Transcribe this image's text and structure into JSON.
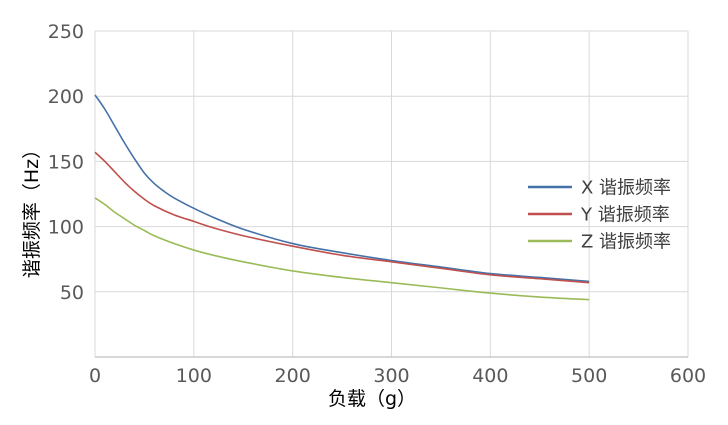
{
  "chart_data": {
    "type": "line",
    "xlabel": "负载（g）",
    "ylabel": "谐振频率（Hz）",
    "xlim": [
      0,
      600
    ],
    "ylim": [
      0,
      250
    ],
    "x_ticks": [
      0,
      100,
      200,
      300,
      400,
      500,
      600
    ],
    "y_ticks": [
      50,
      100,
      150,
      200,
      250
    ],
    "grid": true,
    "legend_position": "right",
    "series": [
      {
        "name": "X 谐振频率",
        "color": "#4472a8",
        "x": [
          0,
          10,
          20,
          30,
          40,
          50,
          60,
          70,
          80,
          100,
          120,
          150,
          200,
          250,
          300,
          350,
          400,
          450,
          500
        ],
        "y": [
          201,
          190,
          177,
          164,
          152,
          141,
          133,
          127,
          122,
          114,
          107,
          98,
          87,
          80,
          74,
          69,
          64,
          61,
          58
        ]
      },
      {
        "name": "Y 谐振频率",
        "color": "#c0504d",
        "x": [
          0,
          10,
          20,
          30,
          40,
          50,
          60,
          80,
          100,
          120,
          150,
          200,
          250,
          300,
          350,
          400,
          450,
          500
        ],
        "y": [
          157,
          150,
          142,
          134,
          127,
          121,
          116,
          109,
          104,
          99,
          93,
          85,
          78,
          73,
          68,
          63,
          60,
          57
        ]
      },
      {
        "name": "Z 谐振频率",
        "color": "#9bbb59",
        "x": [
          0,
          10,
          20,
          30,
          40,
          50,
          60,
          80,
          100,
          120,
          150,
          200,
          250,
          300,
          350,
          400,
          450,
          500
        ],
        "y": [
          122,
          117,
          111,
          106,
          101,
          97,
          93,
          87,
          82,
          78,
          73,
          66,
          61,
          57,
          53,
          49,
          46,
          44
        ]
      }
    ]
  }
}
